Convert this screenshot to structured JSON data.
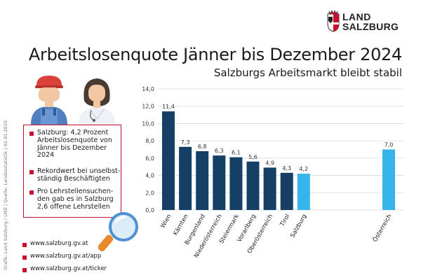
{
  "logo": {
    "line1": "LAND",
    "line2": "SALZBURG"
  },
  "title": "Arbeitslosenquote Jänner bis Dezember 2024",
  "subtitle": "Salzburgs Arbeitsmarkt bleibt stabil",
  "side_credit": "Grafik: Land Salzburg / LMZ | Quelle: Landesstatistik | 02.01.2025",
  "info_box": {
    "bullets": [
      "Salzburg: 4,2 Prozent Arbeitslosenquote von Jänner bis Dezember 2024",
      "Rekordwert bei unselbst-ständig Beschäftigten",
      "Pro Lehrstellensuchen-den gab es in Salzburg 2,6 offene Lehrstellen"
    ]
  },
  "links": [
    "www.salzburg.gv.at",
    "www.salzburg.gv.at/app",
    "www.salzburg.gv.at/ticker"
  ],
  "colors": {
    "bar_dark": "#163f66",
    "bar_light": "#36b5ea",
    "accent": "#c8102e"
  },
  "chart_data": {
    "type": "bar",
    "title": "Arbeitslosenquote Jänner bis Dezember 2024",
    "categories": [
      "Wien",
      "Kärnten",
      "Burgenland",
      "Niederösterreich",
      "Steiermark",
      "Vorarlberg",
      "Oberösterreich",
      "Tirol",
      "Salzburg",
      "Österreich"
    ],
    "values": [
      11.4,
      7.3,
      6.8,
      6.3,
      6.1,
      5.6,
      4.9,
      4.3,
      4.2,
      7.0
    ],
    "value_labels": [
      "11,4",
      "7,3",
      "6,8",
      "6,3",
      "6,1",
      "5,6",
      "4,9",
      "4,3",
      "4,2",
      "7,0"
    ],
    "highlight": [
      "Salzburg",
      "Österreich"
    ],
    "ylim": [
      0,
      14
    ],
    "yticks": [
      "0,0",
      "2,0",
      "4,0",
      "6,0",
      "8,0",
      "10,0",
      "12,0",
      "14,0"
    ],
    "grid": true,
    "xlabel": "",
    "ylabel": ""
  }
}
